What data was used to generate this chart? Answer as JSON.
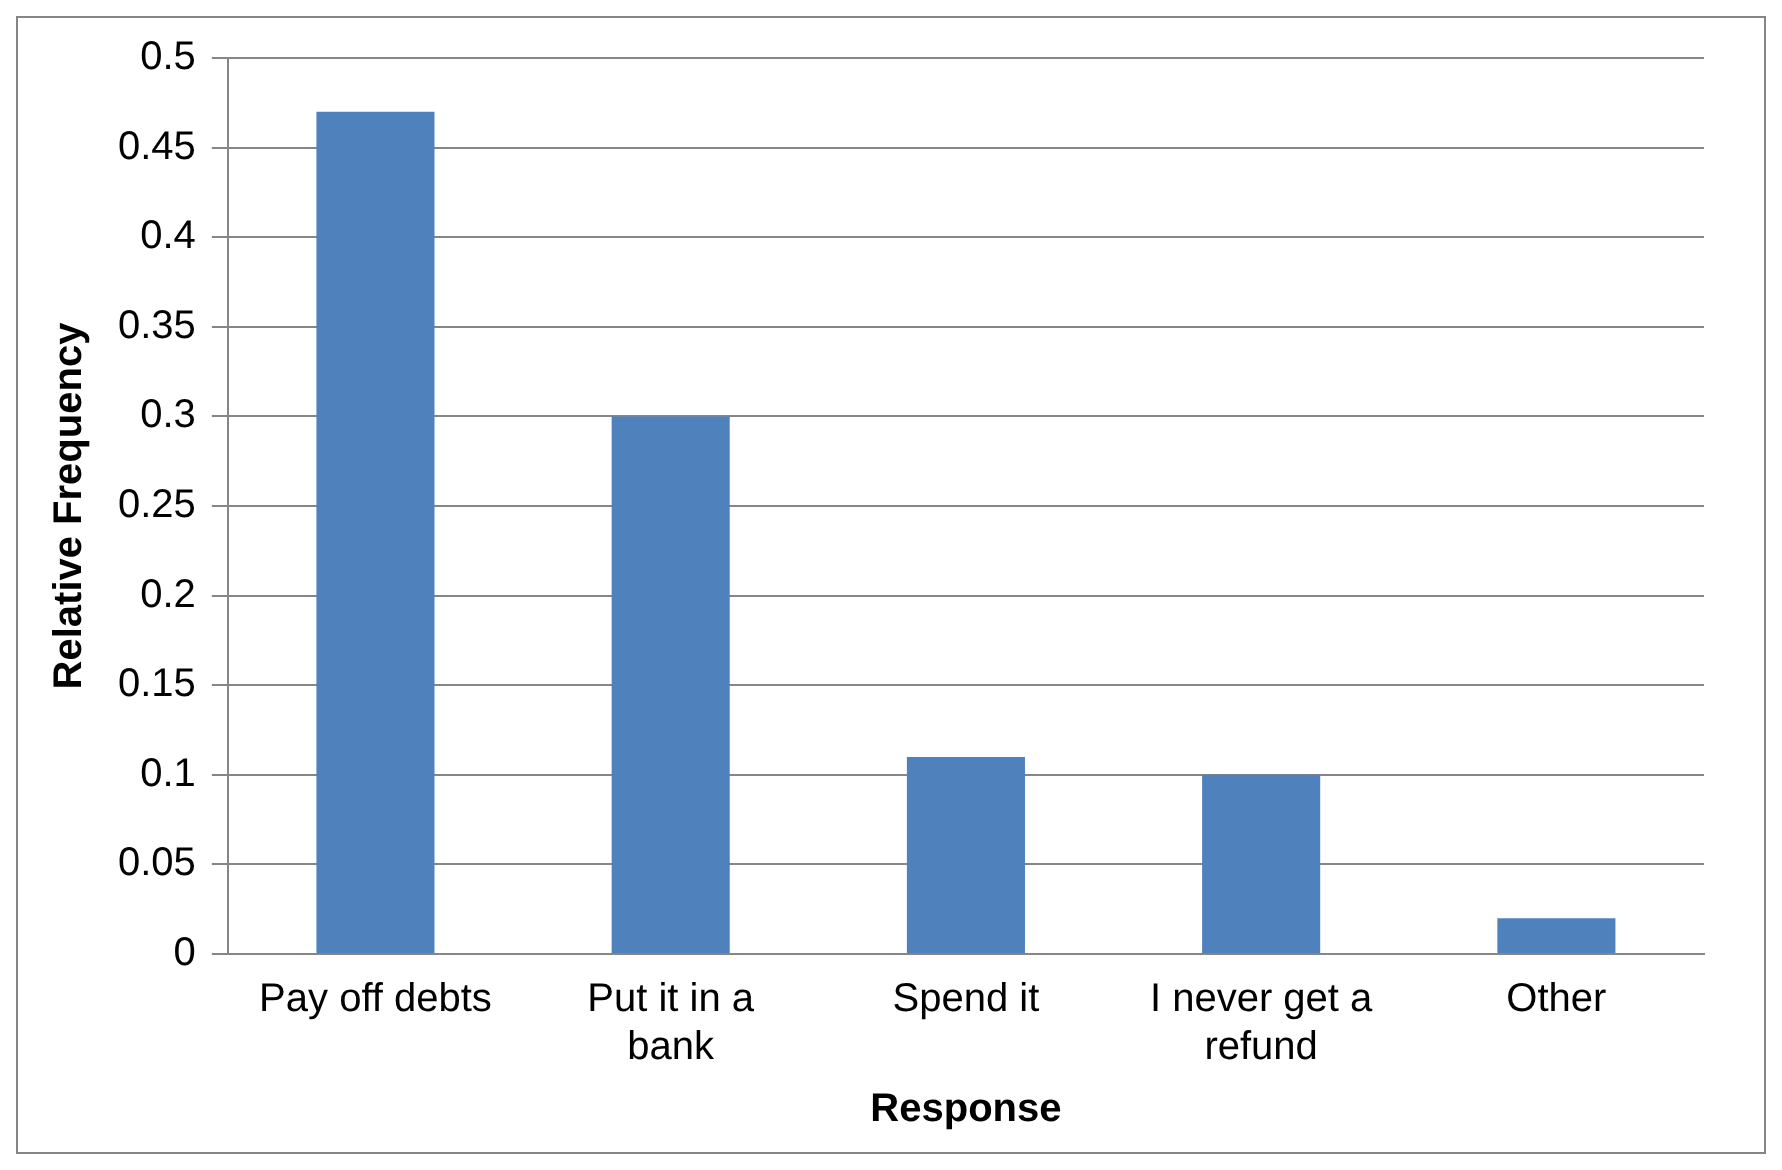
{
  "chart_data": {
    "type": "bar",
    "xlabel": "Response",
    "ylabel": "Relative Frequency",
    "categories": [
      "Pay off debts",
      "Put it in a bank",
      "Spend it",
      "I never get a refund",
      "Other"
    ],
    "values": [
      0.47,
      0.3,
      0.11,
      0.1,
      0.02
    ],
    "color": "#4f81bd",
    "ylim": [
      0,
      0.5
    ],
    "yticks": [
      0,
      0.05,
      0.1,
      0.15,
      0.2,
      0.25,
      0.3,
      0.35,
      0.4,
      0.45,
      0.5
    ],
    "grid": "y"
  }
}
